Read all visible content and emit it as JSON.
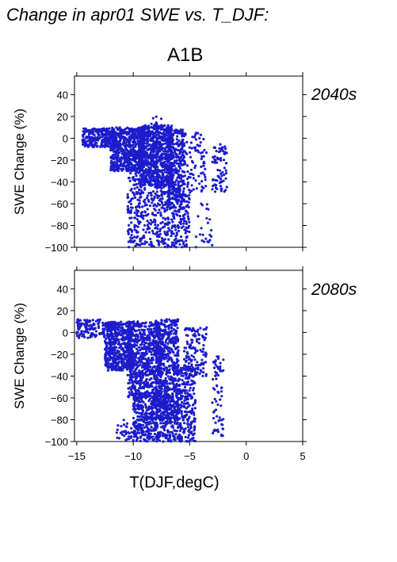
{
  "figure": {
    "title": "Change in apr01 SWE vs. T_DJF:",
    "scenario": "A1B"
  },
  "colors": {
    "points": "#1c1ccc",
    "label": "#2222aa"
  },
  "chart_data": [
    {
      "type": "scatter",
      "panel_label": "2040s",
      "xlabel": "",
      "ylabel": "SWE Change (%)",
      "xlim": [
        -15.2,
        5
      ],
      "ylim": [
        -100,
        57
      ],
      "xticks": [
        -15,
        -10,
        -5,
        0,
        5
      ],
      "yticks": [
        40,
        20,
        0,
        -20,
        -40,
        -60,
        -80,
        -100
      ],
      "show_x_tick_labels": false,
      "grid": false,
      "point_clouds": [
        {
          "x_range": [
            -14.5,
            -11.5
          ],
          "y_range": [
            -8,
            9
          ],
          "count": 260
        },
        {
          "x_range": [
            -12.0,
            -9.0
          ],
          "y_range": [
            -30,
            10
          ],
          "count": 650
        },
        {
          "x_range": [
            -9.5,
            -6.5
          ],
          "y_range": [
            -45,
            12
          ],
          "count": 750
        },
        {
          "x_range": [
            -7.0,
            -5.5
          ],
          "y_range": [
            -60,
            8
          ],
          "count": 320
        },
        {
          "x_range": [
            -10.5,
            -7.0
          ],
          "y_range": [
            -100,
            -30
          ],
          "count": 340
        },
        {
          "x_range": [
            -7.0,
            -5.0
          ],
          "y_range": [
            -100,
            -50
          ],
          "count": 180
        },
        {
          "x_range": [
            -5.5,
            -3.5
          ],
          "y_range": [
            -50,
            5
          ],
          "count": 90
        },
        {
          "x_range": [
            -3.0,
            -1.7
          ],
          "y_range": [
            -50,
            -5
          ],
          "count": 75
        },
        {
          "x_range": [
            -4.5,
            -3.0
          ],
          "y_range": [
            -100,
            -60
          ],
          "count": 25
        },
        {
          "x_range": [
            -8.5,
            -7.5
          ],
          "y_range": [
            10,
            20
          ],
          "count": 8
        }
      ]
    },
    {
      "type": "scatter",
      "panel_label": "2080s",
      "xlabel": "T(DJF,degC)",
      "ylabel": "SWE Change (%)",
      "xlim": [
        -15.2,
        5
      ],
      "ylim": [
        -100,
        57
      ],
      "xticks": [
        -15,
        -10,
        -5,
        0,
        5
      ],
      "xtick_labels": [
        "−15",
        "−10",
        "−5",
        "0",
        "5"
      ],
      "yticks": [
        40,
        20,
        0,
        -20,
        -40,
        -60,
        -80,
        -100
      ],
      "show_x_tick_labels": true,
      "grid": false,
      "point_clouds": [
        {
          "x_range": [
            -15.0,
            -12.5
          ],
          "y_range": [
            -5,
            12
          ],
          "count": 120
        },
        {
          "x_range": [
            -12.5,
            -10.0
          ],
          "y_range": [
            -35,
            10
          ],
          "count": 520
        },
        {
          "x_range": [
            -10.5,
            -7.5
          ],
          "y_range": [
            -60,
            10
          ],
          "count": 700
        },
        {
          "x_range": [
            -8.0,
            -6.0
          ],
          "y_range": [
            -80,
            12
          ],
          "count": 520
        },
        {
          "x_range": [
            -10.0,
            -6.5
          ],
          "y_range": [
            -100,
            -55
          ],
          "count": 460
        },
        {
          "x_range": [
            -6.5,
            -4.5
          ],
          "y_range": [
            -100,
            -30
          ],
          "count": 320
        },
        {
          "x_range": [
            -5.5,
            -3.5
          ],
          "y_range": [
            -40,
            5
          ],
          "count": 120
        },
        {
          "x_range": [
            -3.0,
            -2.0
          ],
          "y_range": [
            -95,
            -20
          ],
          "count": 70
        },
        {
          "x_range": [
            -11.5,
            -9.5
          ],
          "y_range": [
            -100,
            -80
          ],
          "count": 40
        }
      ]
    }
  ]
}
